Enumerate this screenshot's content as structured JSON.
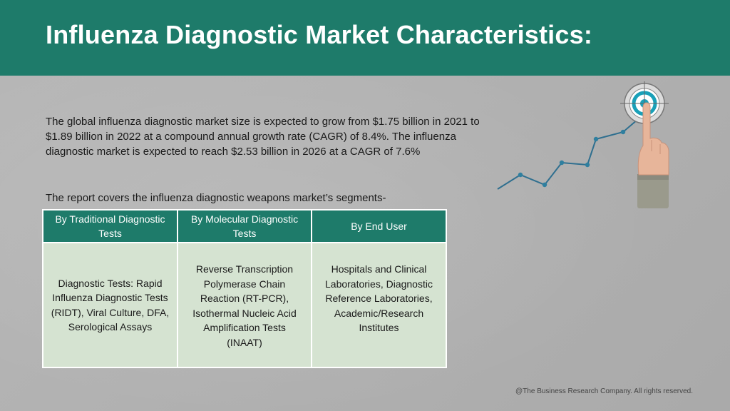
{
  "header": {
    "title": "Influenza Diagnostic Market Characteristics:",
    "color": "#1e7b6a"
  },
  "intro": {
    "text": "The global influenza diagnostic market size is expected to grow from $1.75 billion in 2021 to $1.89 billion in 2022 at a compound annual growth rate (CAGR) of 8.4%. The influenza diagnostic market is expected to reach $2.53 billion in 2026 at a CAGR of 7.6%"
  },
  "segments": {
    "intro": "The report covers the influenza diagnostic weapons market’s segments-",
    "columns": [
      {
        "header": "By Traditional Diagnostic Tests",
        "body": "Diagnostic Tests: Rapid Influenza Diagnostic Tests (RIDT), Viral Culture, DFA, Serological Assays"
      },
      {
        "header": "By Molecular Diagnostic Tests",
        "body": "Reverse Transcription Polymerase Chain Reaction (RT-PCR), Isothermal Nucleic Acid Amplification Tests (INAAT)"
      },
      {
        "header": "By End User",
        "body": "Hospitals and Clinical Laboratories, Diagnostic Reference Laboratories, Academic/Research Institutes"
      }
    ]
  },
  "graphic": {
    "icon": "growth-target-icon",
    "line_color": "#2f6f8f"
  },
  "footer": {
    "copyright": "@The Business Research Company. All rights reserved."
  }
}
